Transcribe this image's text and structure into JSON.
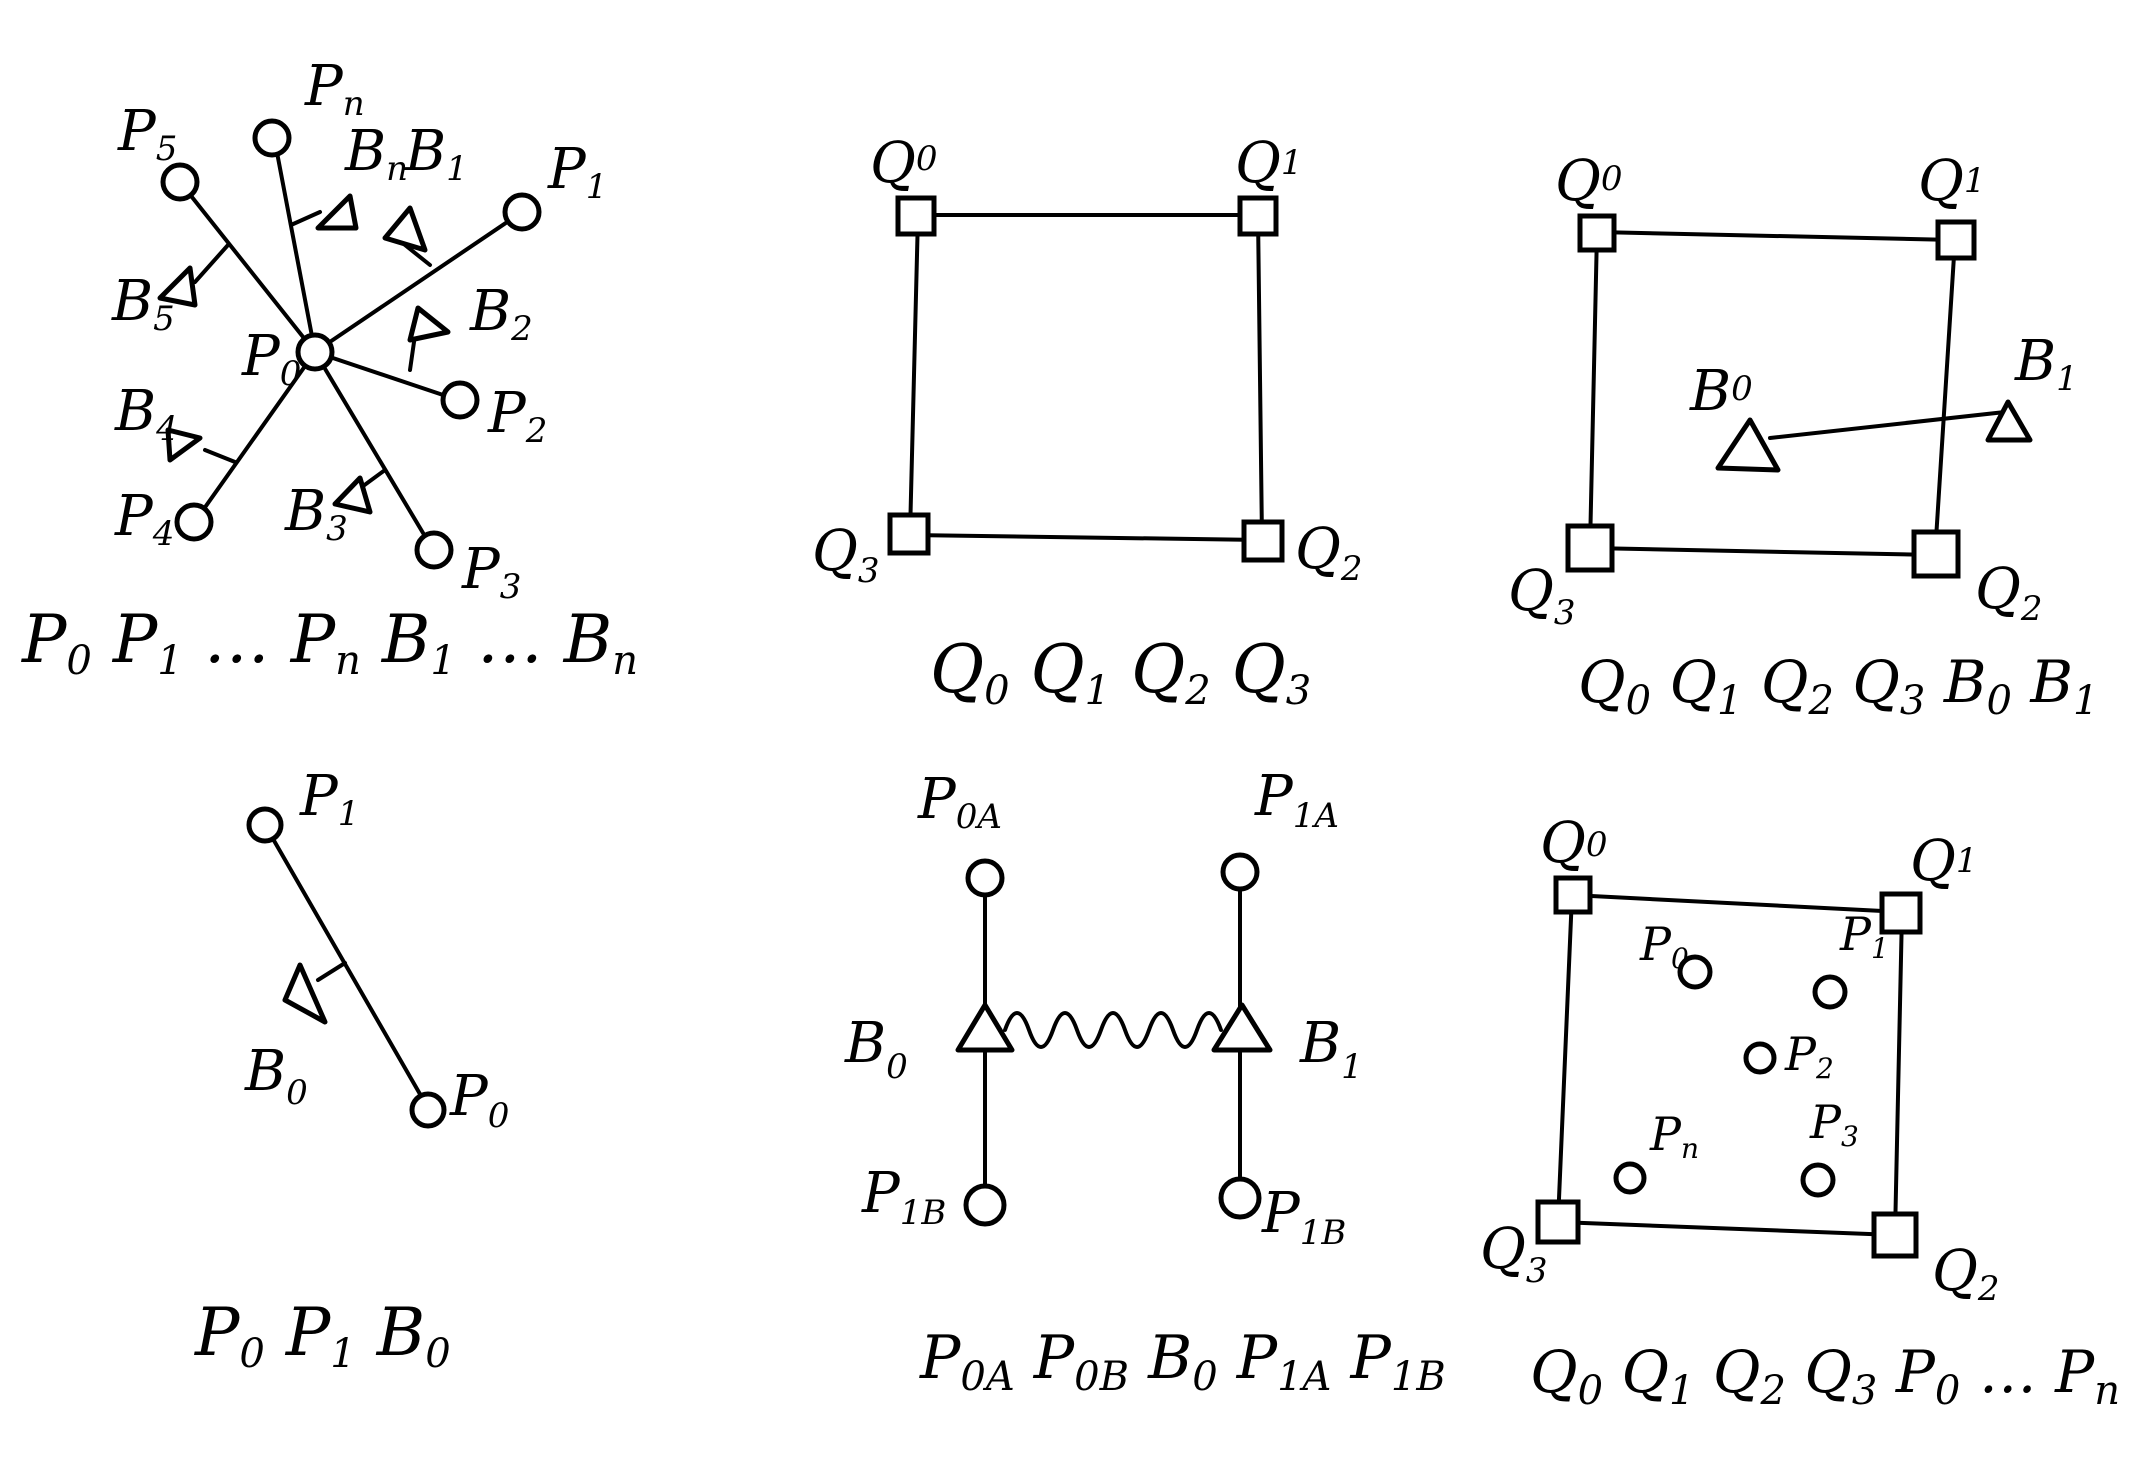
{
  "panels": {
    "star": {
      "labels": {
        "P0": {
          "base": "P",
          "sub": "0"
        },
        "P1": {
          "base": "P",
          "sub": "1"
        },
        "P2": {
          "base": "P",
          "sub": "2"
        },
        "P3": {
          "base": "P",
          "sub": "3"
        },
        "P4": {
          "base": "P",
          "sub": "4"
        },
        "P5": {
          "base": "P",
          "sub": "5"
        },
        "Pn": {
          "base": "P",
          "sub": "n"
        },
        "B1": {
          "base": "B",
          "sub": "1"
        },
        "B2": {
          "base": "B",
          "sub": "2"
        },
        "B3": {
          "base": "B",
          "sub": "3"
        },
        "B4": {
          "base": "B",
          "sub": "4"
        },
        "B5": {
          "base": "B",
          "sub": "5"
        },
        "Bn": {
          "base": "B",
          "sub": "n"
        }
      },
      "caption": [
        {
          "base": "P",
          "sub": "0"
        },
        {
          "base": " P",
          "sub": "1"
        },
        {
          "base": " … P",
          "sub": "n"
        },
        {
          "base": " B",
          "sub": "1"
        },
        {
          "base": " … B",
          "sub": "n"
        }
      ]
    },
    "square": {
      "labels": {
        "Q0": {
          "base": "Q",
          "sub": "0"
        },
        "Q1": {
          "base": "Q",
          "sub": "1"
        },
        "Q2": {
          "base": "Q",
          "sub": "2"
        },
        "Q3": {
          "base": "Q",
          "sub": "3"
        }
      },
      "caption": [
        {
          "base": "Q",
          "sub": "0"
        },
        {
          "base": "Q",
          "sub": "1"
        },
        {
          "base": " Q",
          "sub": "2"
        },
        {
          "base": "Q",
          "sub": "3"
        }
      ]
    },
    "square_beam": {
      "labels": {
        "Q0": {
          "base": "Q",
          "sub": "0"
        },
        "Q1": {
          "base": "Q",
          "sub": "1"
        },
        "Q2": {
          "base": "Q",
          "sub": "2"
        },
        "Q3": {
          "base": "Q",
          "sub": "3"
        },
        "B0": {
          "base": "B",
          "sub": "0"
        },
        "B1": {
          "base": "B",
          "sub": "1"
        }
      },
      "caption": [
        {
          "base": "Q",
          "sub": "0"
        },
        {
          "base": "Q",
          "sub": "1"
        },
        {
          "base": "Q",
          "sub": "2"
        },
        {
          "base": " Q",
          "sub": "3"
        },
        {
          "base": " B",
          "sub": "0"
        },
        {
          "base": "B",
          "sub": "1"
        }
      ]
    },
    "bar": {
      "labels": {
        "P1": {
          "base": "P",
          "sub": "1"
        },
        "P0": {
          "base": "P",
          "sub": "0"
        },
        "B0": {
          "base": "B",
          "sub": "0"
        }
      },
      "caption": [
        {
          "base": "P",
          "sub": "0"
        },
        {
          "base": "P",
          "sub": "1"
        },
        {
          "base": " B",
          "sub": "0"
        }
      ]
    },
    "spring": {
      "labels": {
        "P0A": {
          "base": "P",
          "sub": "0A"
        },
        "P1A": {
          "base": "P",
          "sub": "1A"
        },
        "P1B_left": {
          "base": "P",
          "sub": "1B"
        },
        "P1B_right": {
          "base": "P",
          "sub": "1B"
        },
        "B0": {
          "base": "B",
          "sub": "0"
        },
        "B1": {
          "base": "B",
          "sub": "1"
        }
      },
      "caption": [
        {
          "base": "P",
          "sub": "0A"
        },
        {
          "base": "P",
          "sub": "0B"
        },
        {
          "base": "B",
          "sub": "0"
        },
        {
          "base": " P",
          "sub": "1A"
        },
        {
          "base": " P",
          "sub": "1B"
        }
      ]
    },
    "square_points": {
      "labels": {
        "Q0": {
          "base": "Q",
          "sub": "0"
        },
        "Q1": {
          "base": "Q",
          "sub": "1"
        },
        "Q2": {
          "base": "Q",
          "sub": "2"
        },
        "Q3": {
          "base": "Q",
          "sub": "3"
        },
        "P0": {
          "base": "P",
          "sub": "0"
        },
        "P1": {
          "base": "P",
          "sub": "1"
        },
        "P2": {
          "base": "P",
          "sub": "2"
        },
        "P3": {
          "base": "P",
          "sub": "3"
        },
        "Pn": {
          "base": "P",
          "sub": "n"
        }
      },
      "caption": [
        {
          "base": "Q",
          "sub": "0"
        },
        {
          "base": "Q",
          "sub": "1"
        },
        {
          "base": "Q",
          "sub": "2"
        },
        {
          "base": "Q",
          "sub": "3"
        },
        {
          "base": " P",
          "sub": "0"
        },
        {
          "base": " … P",
          "sub": "n"
        }
      ]
    }
  }
}
